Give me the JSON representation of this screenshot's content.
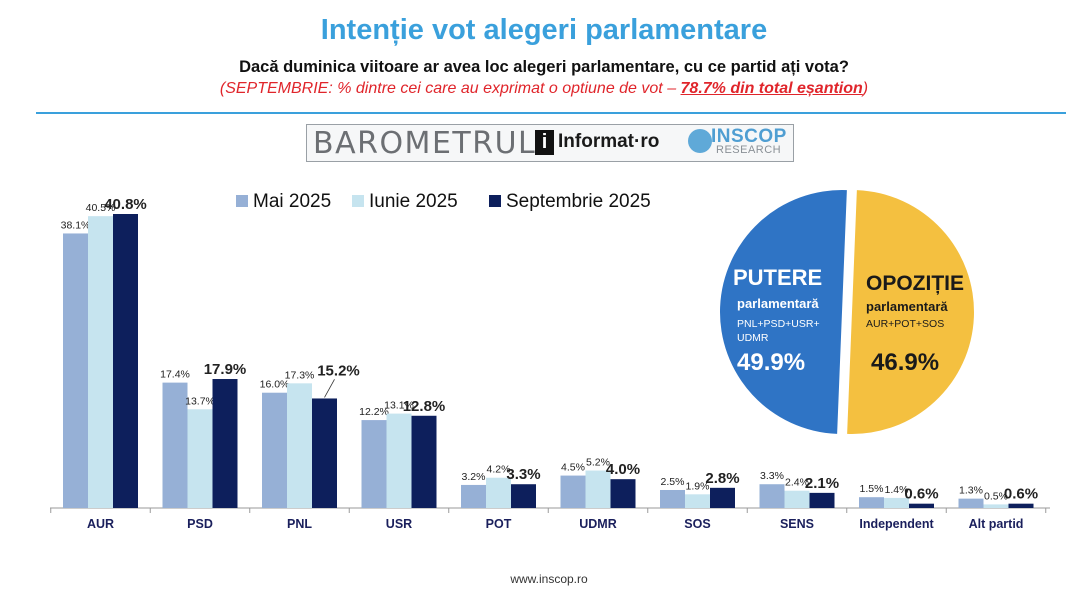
{
  "title": "Intenție vot alegeri parlamentare",
  "subtitle": "Dacă duminica viitoare ar avea loc alegeri parlamentare, cu ce partid ați vota?",
  "note": {
    "prefix": "(SEPTEMBRIE: % dintre cei care au exprimat o optiune de vot – ",
    "highlight": "78.7% din total eșantion",
    "suffix": ")"
  },
  "logos": {
    "barometru": "BAROMETRUL",
    "informat_i": "i",
    "informat": "Informat·ro",
    "inscop": "INSCOP",
    "research": "RESEARCH"
  },
  "colors": {
    "mai": "#96b0d6",
    "iunie": "#c6e4ef",
    "septembrie": "#0d1f5c",
    "putere": "#2f74c5",
    "opozitie": "#f4c040",
    "title": "#3aa0dc",
    "note": "#e0252b"
  },
  "chart_data": [
    {
      "type": "bar",
      "categories": [
        "AUR",
        "PSD",
        "PNL",
        "USR",
        "POT",
        "UDMR",
        "SOS",
        "SENS",
        "Independent",
        "Alt partid"
      ],
      "series": [
        {
          "name": "Mai 2025",
          "values": [
            38.1,
            17.4,
            16.0,
            12.2,
            3.2,
            4.5,
            2.5,
            3.3,
            1.5,
            1.3
          ],
          "labels": [
            "38.1%",
            "17.4%",
            "16.0%",
            "12.2%",
            "3.2%",
            "4.5%",
            "2.5%",
            "3.3%",
            "1.5%",
            "1.3%"
          ]
        },
        {
          "name": "Iunie 2025",
          "values": [
            40.5,
            13.7,
            17.3,
            13.1,
            4.2,
            5.2,
            1.9,
            2.4,
            1.4,
            0.5
          ],
          "labels": [
            "40.5%",
            "13.7%",
            "17.3%",
            "13.1%",
            "4.2%",
            "5.2%",
            "1.9%",
            "2.4%",
            "1.4%",
            "0.5%"
          ]
        },
        {
          "name": "Septembrie 2025",
          "values": [
            40.8,
            17.9,
            15.2,
            12.8,
            3.3,
            4.0,
            2.8,
            2.1,
            0.6,
            0.6
          ],
          "labels": [
            "40.8%",
            "17.9%",
            "15.2%",
            "12.8%",
            "3.3%",
            "4.0%",
            "2.8%",
            "2.1%",
            "0.6%",
            "0.6%"
          ]
        }
      ],
      "title": "",
      "xlabel": "",
      "ylabel": "",
      "ylim": [
        0,
        42
      ],
      "grid": false,
      "legend": "top"
    },
    {
      "type": "pie",
      "slices": [
        {
          "name": "PUTERE",
          "sub": "parlamentară",
          "members": "PNL+PSD+USR+ UDMR",
          "value": 49.9,
          "label": "49.9%"
        },
        {
          "name": "OPOZIȚIE",
          "sub": "parlamentară",
          "members": "AUR+POT+SOS",
          "value": 46.9,
          "label": "46.9%"
        }
      ]
    }
  ],
  "footer": "www.inscop.ro"
}
